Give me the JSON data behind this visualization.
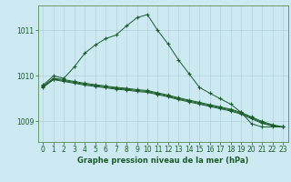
{
  "title": "Graphe pression niveau de la mer (hPa)",
  "bg_color": "#cce8f0",
  "grid_color": "#aaccd8",
  "line_color": "#1a5c2a",
  "marker_color": "#1a5c2a",
  "ylim": [
    1008.55,
    1011.55
  ],
  "yticks": [
    1009,
    1010,
    1011
  ],
  "xlim": [
    -0.5,
    23.5
  ],
  "xticks": [
    0,
    1,
    2,
    3,
    4,
    5,
    6,
    7,
    8,
    9,
    10,
    11,
    12,
    13,
    14,
    15,
    16,
    17,
    18,
    19,
    20,
    21,
    22,
    23
  ],
  "series1": [
    1009.8,
    1010.0,
    1009.95,
    1010.2,
    1010.5,
    1010.68,
    1010.82,
    1010.9,
    1011.1,
    1011.28,
    1011.35,
    1011.0,
    1010.7,
    1010.35,
    1010.05,
    1009.75,
    1009.62,
    1009.5,
    1009.38,
    1009.2,
    1008.95,
    1008.88,
    1008.88,
    1008.88
  ],
  "series2": [
    1009.78,
    1009.95,
    1009.92,
    1009.88,
    1009.84,
    1009.81,
    1009.78,
    1009.75,
    1009.73,
    1009.7,
    1009.68,
    1009.63,
    1009.58,
    1009.52,
    1009.47,
    1009.42,
    1009.37,
    1009.32,
    1009.27,
    1009.2,
    1009.1,
    1009.0,
    1008.93,
    1008.88
  ],
  "series3": [
    1009.76,
    1009.93,
    1009.9,
    1009.86,
    1009.82,
    1009.79,
    1009.76,
    1009.73,
    1009.71,
    1009.68,
    1009.66,
    1009.61,
    1009.56,
    1009.5,
    1009.45,
    1009.4,
    1009.35,
    1009.3,
    1009.25,
    1009.18,
    1009.08,
    1008.98,
    1008.91,
    1008.88
  ],
  "series4": [
    1009.75,
    1009.92,
    1009.88,
    1009.84,
    1009.8,
    1009.77,
    1009.74,
    1009.71,
    1009.69,
    1009.66,
    1009.64,
    1009.59,
    1009.54,
    1009.48,
    1009.43,
    1009.38,
    1009.33,
    1009.28,
    1009.23,
    1009.16,
    1009.06,
    1008.96,
    1008.9,
    1008.88
  ],
  "tick_labelsize": 5.5,
  "title_fontsize": 6.0,
  "linewidth": 0.7,
  "markersize": 2.5
}
